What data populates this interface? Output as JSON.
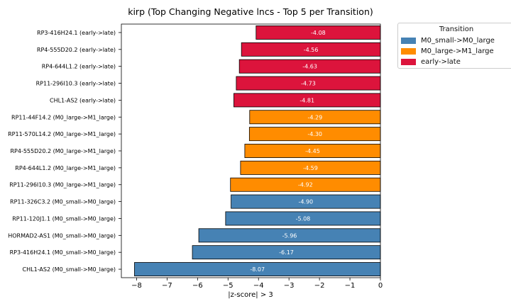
{
  "chart_data": {
    "type": "bar",
    "orientation": "horizontal",
    "title": "kirp (Top Changing Negative lncs - Top 5 per Transition)",
    "xlabel": "|z-score| > 3",
    "ylabel": "",
    "xlim": [
      -8.5,
      0
    ],
    "xticks": [
      -8,
      -7,
      -6,
      -5,
      -4,
      -3,
      -2,
      -1,
      0
    ],
    "xtick_labels": [
      "−8",
      "−7",
      "−6",
      "−5",
      "−4",
      "−3",
      "−2",
      "−1",
      "0"
    ],
    "legend": {
      "title": "Transition",
      "placement": "upper-right outside",
      "entries": [
        {
          "name": "M0_small->M0_large",
          "color": "#4682b4"
        },
        {
          "name": "M0_large->M1_large",
          "color": "#ff8c00"
        },
        {
          "name": "early->late",
          "color": "#dc143c"
        }
      ]
    },
    "bars": [
      {
        "label": "RP3-416H24.1 (early->late)",
        "value": -4.08,
        "value_label": "-4.08",
        "group": "early->late"
      },
      {
        "label": "RP4-555D20.2 (early->late)",
        "value": -4.56,
        "value_label": "-4.56",
        "group": "early->late"
      },
      {
        "label": "RP4-644L1.2 (early->late)",
        "value": -4.63,
        "value_label": "-4.63",
        "group": "early->late"
      },
      {
        "label": "RP11-296I10.3 (early->late)",
        "value": -4.73,
        "value_label": "-4.73",
        "group": "early->late"
      },
      {
        "label": "CHL1-AS2 (early->late)",
        "value": -4.81,
        "value_label": "-4.81",
        "group": "early->late"
      },
      {
        "label": "RP11-44F14.2 (M0_large->M1_large)",
        "value": -4.29,
        "value_label": "-4.29",
        "group": "M0_large->M1_large"
      },
      {
        "label": "RP11-570L14.2 (M0_large->M1_large)",
        "value": -4.3,
        "value_label": "-4.30",
        "group": "M0_large->M1_large"
      },
      {
        "label": "RP4-555D20.2 (M0_large->M1_large)",
        "value": -4.45,
        "value_label": "-4.45",
        "group": "M0_large->M1_large"
      },
      {
        "label": "RP4-644L1.2 (M0_large->M1_large)",
        "value": -4.59,
        "value_label": "-4.59",
        "group": "M0_large->M1_large"
      },
      {
        "label": "RP11-296I10.3 (M0_large->M1_large)",
        "value": -4.92,
        "value_label": "-4.92",
        "group": "M0_large->M1_large"
      },
      {
        "label": "RP11-326C3.2 (M0_small->M0_large)",
        "value": -4.9,
        "value_label": "-4.90",
        "group": "M0_small->M0_large"
      },
      {
        "label": "RP11-120J1.1 (M0_small->M0_large)",
        "value": -5.08,
        "value_label": "-5.08",
        "group": "M0_small->M0_large"
      },
      {
        "label": "HORMAD2-AS1 (M0_small->M0_large)",
        "value": -5.96,
        "value_label": "-5.96",
        "group": "M0_small->M0_large"
      },
      {
        "label": "RP3-416H24.1 (M0_small->M0_large)",
        "value": -6.17,
        "value_label": "-6.17",
        "group": "M0_small->M0_large"
      },
      {
        "label": "CHL1-AS2 (M0_small->M0_large)",
        "value": -8.07,
        "value_label": "-8.07",
        "group": "M0_small->M0_large"
      }
    ]
  }
}
